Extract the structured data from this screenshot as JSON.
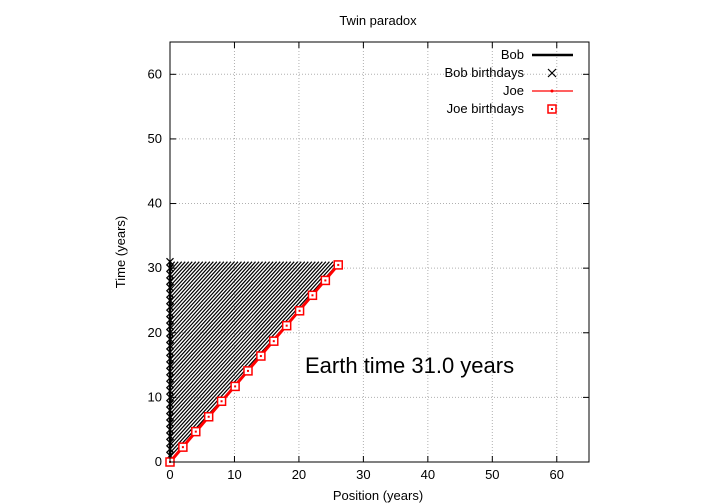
{
  "chart_data": {
    "type": "line",
    "title": "Twin paradox",
    "xlabel": "Position (years)",
    "ylabel": "Time (years)",
    "xlim": [
      0,
      65
    ],
    "ylim": [
      0,
      65
    ],
    "xticks": [
      0,
      10,
      20,
      30,
      40,
      50,
      60
    ],
    "yticks": [
      0,
      10,
      20,
      30,
      40,
      50,
      60
    ],
    "grid": true,
    "legend_position": "top-right",
    "annotation": "Earth time 31.0 years",
    "colors": {
      "bob": "#000000",
      "joe": "#ff0000",
      "grid": "#b0b0b0"
    },
    "series": [
      {
        "name": "Bob",
        "style": "line",
        "x": [
          0,
          0
        ],
        "y": [
          0,
          31.0
        ]
      },
      {
        "name": "Bob birthdays",
        "style": "markers-x",
        "x": [
          0,
          0,
          0,
          0,
          0,
          0,
          0,
          0,
          0,
          0,
          0,
          0,
          0,
          0,
          0,
          0,
          0,
          0,
          0,
          0,
          0,
          0,
          0,
          0,
          0,
          0,
          0,
          0,
          0,
          0,
          0,
          0
        ],
        "y": [
          0,
          1,
          2,
          3,
          4,
          5,
          6,
          7,
          8,
          9,
          10,
          11,
          12,
          13,
          14,
          15,
          16,
          17,
          18,
          19,
          20,
          21,
          22,
          23,
          24,
          25,
          26,
          27,
          28,
          29,
          30,
          31
        ]
      },
      {
        "name": "Joe",
        "style": "line-points",
        "x": [
          0,
          26.5
        ],
        "y": [
          0,
          31.0
        ]
      },
      {
        "name": "Joe birthdays",
        "style": "markers-square",
        "x": [
          0,
          2.0,
          4.0,
          6.0,
          8.0,
          10.1,
          12.1,
          14.1,
          16.1,
          18.1,
          20.1,
          22.1,
          24.1,
          26.1
        ],
        "y": [
          0,
          2.3,
          4.7,
          7.0,
          9.4,
          11.7,
          14.1,
          16.4,
          18.7,
          21.1,
          23.4,
          25.8,
          28.1,
          30.5
        ]
      }
    ]
  }
}
